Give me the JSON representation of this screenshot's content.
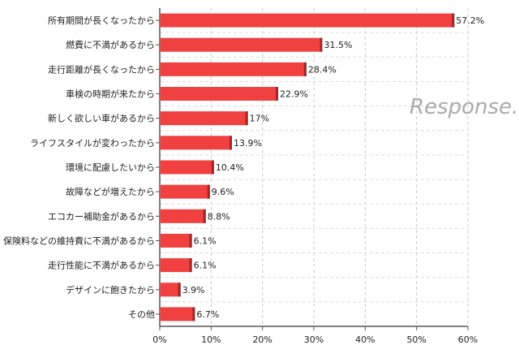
{
  "chart_data": {
    "type": "bar",
    "orientation": "horizontal",
    "categories": [
      "所有期間が長くなったから",
      "燃費に不満があるから",
      "走行距離が長くなったから",
      "車検の時期が来たから",
      "新しく欲しい車があるから",
      "ライフスタイルが変わったから",
      "環境に配慮したいから",
      "故障などが増えたから",
      "エコカー補助金があるから",
      "保険料などの維持費に不満があるから",
      "走行性能に不満があるから",
      "デザインに飽きたから",
      "その他"
    ],
    "values": [
      57.2,
      31.5,
      28.4,
      22.9,
      17,
      13.9,
      10.4,
      9.6,
      8.8,
      6.1,
      6.1,
      3.9,
      6.7
    ],
    "data_labels": [
      "57.2%",
      "31.5%",
      "28.4%",
      "22.9%",
      "17%",
      "13.9%",
      "10.4%",
      "9.6%",
      "8.8%",
      "6.1%",
      "6.1%",
      "3.9%",
      "6.7%"
    ],
    "xlim": [
      0,
      60
    ],
    "x_ticks": [
      "0%",
      "10%",
      "20%",
      "30%",
      "40%",
      "50%",
      "60%"
    ],
    "grid": "vertical dashed",
    "bar_color": "#f04040"
  },
  "watermark": "Response."
}
